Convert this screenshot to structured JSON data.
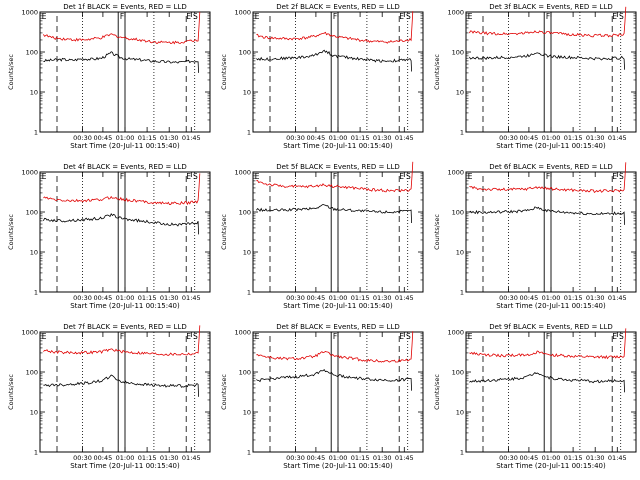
{
  "chart_data": [
    {
      "type": "line",
      "title": "Det 1f BLACK = Events, RED = LLD",
      "xlabel": "Start Time (20-Jul-11 00:15:40)",
      "ylabel": "Counts/sec",
      "xticks": [
        "00:30",
        "00:45",
        "01:00",
        "01:15",
        "01:30",
        "01:45"
      ],
      "yticks": [
        "1",
        "10",
        "100",
        "1000"
      ],
      "ylim": [
        1,
        1000
      ],
      "yscale": "log",
      "markers": [
        "E",
        "F",
        "E",
        "S"
      ],
      "series": [
        {
          "color": "#000000",
          "values": [
            60,
            63,
            65,
            62,
            68,
            66,
            70,
            95,
            72,
            66,
            64,
            60,
            58,
            56,
            55,
            58,
            60
          ]
        },
        {
          "color": "#e00000",
          "values": [
            270,
            225,
            215,
            205,
            200,
            210,
            225,
            275,
            235,
            215,
            200,
            185,
            175,
            172,
            175,
            185,
            200
          ]
        }
      ]
    },
    {
      "type": "line",
      "title": "Det 2f BLACK = Events, RED = LLD",
      "xlabel": "Start Time (20-Jul-11 00:15:40)",
      "ylabel": "Counts/sec",
      "xticks": [
        "00:30",
        "00:45",
        "01:00",
        "01:15",
        "01:30",
        "01:45"
      ],
      "yticks": [
        "1",
        "10",
        "100",
        "1000"
      ],
      "ylim": [
        1,
        1000
      ],
      "yscale": "log",
      "markers": [
        "E",
        "F",
        "E",
        "S"
      ],
      "series": [
        {
          "color": "#000000",
          "values": [
            68,
            66,
            68,
            70,
            72,
            75,
            82,
            110,
            80,
            75,
            70,
            66,
            62,
            60,
            60,
            62,
            65
          ]
        },
        {
          "color": "#e00000",
          "values": [
            260,
            230,
            220,
            215,
            215,
            225,
            245,
            300,
            250,
            225,
            210,
            195,
            185,
            180,
            180,
            190,
            210
          ]
        }
      ]
    },
    {
      "type": "line",
      "title": "Det 3f BLACK = Events, RED = LLD",
      "xlabel": "Start Time (20-Jul-11 00:15:40)",
      "ylabel": "Counts/sec",
      "xticks": [
        "00:30",
        "00:45",
        "01:00",
        "01:15",
        "01:30",
        "01:45"
      ],
      "yticks": [
        "1",
        "10",
        "100",
        "1000"
      ],
      "ylim": [
        1,
        1000
      ],
      "yscale": "log",
      "markers": [
        "E",
        "F",
        "E",
        "S"
      ],
      "series": [
        {
          "color": "#000000",
          "values": [
            72,
            70,
            70,
            72,
            74,
            76,
            80,
            100,
            80,
            76,
            74,
            72,
            70,
            68,
            68,
            70,
            72
          ]
        },
        {
          "color": "#e00000",
          "values": [
            320,
            300,
            290,
            285,
            285,
            290,
            300,
            330,
            305,
            290,
            280,
            270,
            262,
            258,
            258,
            262,
            270
          ]
        }
      ]
    },
    {
      "type": "line",
      "title": "Det 4f BLACK = Events, RED = LLD",
      "xlabel": "Start Time (20-Jul-11 00:15:40)",
      "ylabel": "Counts/sec",
      "xticks": [
        "00:30",
        "00:45",
        "01:00",
        "01:15",
        "01:30",
        "01:45"
      ],
      "yticks": [
        "1",
        "10",
        "100",
        "1000"
      ],
      "ylim": [
        1,
        1000
      ],
      "yscale": "log",
      "markers": [
        "E",
        "F",
        "E",
        "S"
      ],
      "series": [
        {
          "color": "#000000",
          "values": [
            65,
            62,
            60,
            62,
            64,
            66,
            70,
            85,
            70,
            64,
            60,
            56,
            52,
            50,
            48,
            50,
            55
          ]
        },
        {
          "color": "#e00000",
          "values": [
            230,
            205,
            195,
            190,
            190,
            195,
            205,
            235,
            210,
            195,
            185,
            175,
            168,
            165,
            165,
            170,
            185
          ]
        }
      ]
    },
    {
      "type": "line",
      "title": "Det 5f BLACK = Events, RED = LLD",
      "xlabel": "Start Time (20-Jul-11 00:15:40)",
      "ylabel": "Counts/sec",
      "xticks": [
        "00:30",
        "00:45",
        "01:00",
        "01:15",
        "01:30",
        "01:45"
      ],
      "yticks": [
        "1",
        "10",
        "100",
        "1000"
      ],
      "ylim": [
        1,
        1000
      ],
      "yscale": "log",
      "markers": [
        "E",
        "F",
        "E",
        "S"
      ],
      "series": [
        {
          "color": "#000000",
          "values": [
            115,
            110,
            110,
            112,
            115,
            118,
            122,
            150,
            120,
            115,
            110,
            106,
            102,
            100,
            100,
            102,
            106
          ]
        },
        {
          "color": "#e00000",
          "values": [
            600,
            500,
            460,
            440,
            430,
            430,
            440,
            480,
            440,
            420,
            400,
            380,
            360,
            350,
            340,
            345,
            360
          ]
        }
      ]
    },
    {
      "type": "line",
      "title": "Det 6f BLACK = Events, RED = LLD",
      "xlabel": "Start Time (20-Jul-11 00:15:40)",
      "ylabel": "Counts/sec",
      "xticks": [
        "00:30",
        "00:45",
        "01:00",
        "01:15",
        "01:30",
        "01:45"
      ],
      "yticks": [
        "1",
        "10",
        "100",
        "1000"
      ],
      "ylim": [
        1,
        1000
      ],
      "yscale": "log",
      "markers": [
        "E",
        "F",
        "E",
        "S"
      ],
      "series": [
        {
          "color": "#000000",
          "values": [
            100,
            98,
            98,
            100,
            102,
            104,
            108,
            130,
            108,
            102,
            98,
            95,
            92,
            90,
            90,
            92,
            95
          ]
        },
        {
          "color": "#e00000",
          "values": [
            420,
            380,
            370,
            365,
            365,
            370,
            380,
            420,
            385,
            370,
            360,
            350,
            340,
            335,
            335,
            340,
            350
          ]
        }
      ]
    },
    {
      "type": "line",
      "title": "Det 7f BLACK = Events, RED = LLD",
      "xlabel": "Start Time (20-Jul-11 00:15:40)",
      "ylabel": "Counts/sec",
      "xticks": [
        "00:30",
        "00:45",
        "01:00",
        "01:15",
        "01:30",
        "01:45"
      ],
      "yticks": [
        "1",
        "10",
        "100",
        "1000"
      ],
      "ylim": [
        1,
        1000
      ],
      "yscale": "log",
      "markers": [
        "E",
        "F",
        "E",
        "S"
      ],
      "series": [
        {
          "color": "#000000",
          "values": [
            45,
            48,
            48,
            50,
            52,
            55,
            60,
            80,
            58,
            52,
            50,
            48,
            46,
            45,
            45,
            46,
            48
          ]
        },
        {
          "color": "#e00000",
          "values": [
            350,
            320,
            310,
            305,
            305,
            310,
            320,
            370,
            325,
            310,
            300,
            290,
            282,
            278,
            278,
            282,
            292
          ]
        }
      ]
    },
    {
      "type": "line",
      "title": "Det 8f BLACK = Events, RED = LLD",
      "xlabel": "Start Time (20-Jul-11 00:15:40)",
      "ylabel": "Counts/sec",
      "xticks": [
        "00:30",
        "00:45",
        "01:00",
        "01:15",
        "01:30",
        "01:45"
      ],
      "yticks": [
        "1",
        "10",
        "100",
        "1000"
      ],
      "ylim": [
        1,
        1000
      ],
      "yscale": "log",
      "markers": [
        "E",
        "F",
        "E",
        "S"
      ],
      "series": [
        {
          "color": "#000000",
          "values": [
            60,
            65,
            70,
            72,
            75,
            80,
            88,
            115,
            85,
            78,
            72,
            68,
            65,
            63,
            62,
            64,
            68
          ]
        },
        {
          "color": "#e00000",
          "values": [
            280,
            240,
            220,
            215,
            215,
            225,
            245,
            320,
            255,
            230,
            215,
            200,
            190,
            186,
            186,
            192,
            210
          ]
        }
      ]
    },
    {
      "type": "line",
      "title": "Det 9f BLACK = Events, RED = LLD",
      "xlabel": "Start Time (20-Jul-11 00:15:40)",
      "ylabel": "Counts/sec",
      "xticks": [
        "00:30",
        "00:45",
        "01:00",
        "01:15",
        "01:30",
        "01:45"
      ],
      "yticks": [
        "1",
        "10",
        "100",
        "1000"
      ],
      "ylim": [
        1,
        1000
      ],
      "yscale": "log",
      "markers": [
        "E",
        "F",
        "E",
        "S"
      ],
      "series": [
        {
          "color": "#000000",
          "values": [
            58,
            60,
            62,
            64,
            66,
            70,
            76,
            100,
            74,
            68,
            64,
            62,
            60,
            58,
            58,
            60,
            62
          ]
        },
        {
          "color": "#e00000",
          "values": [
            300,
            275,
            262,
            258,
            258,
            262,
            272,
            310,
            275,
            262,
            252,
            244,
            238,
            235,
            235,
            238,
            246
          ]
        }
      ]
    }
  ]
}
